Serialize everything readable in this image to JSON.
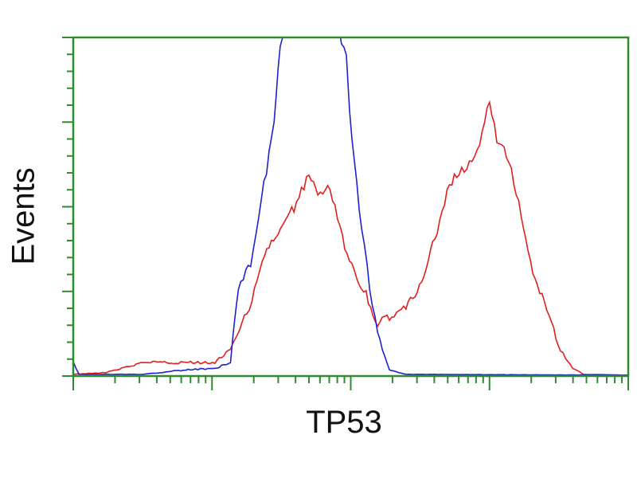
{
  "chart_data": {
    "type": "line",
    "title": "",
    "xlabel": "TP53",
    "ylabel": "Events",
    "xscale": "log",
    "xlim": [
      1,
      10000
    ],
    "ylim": [
      0,
      4
    ],
    "grid": false,
    "legend": "none",
    "axis_color": "#2e8b2e",
    "series": [
      {
        "color": "#e02020",
        "x": [
          1,
          1.7,
          3.2,
          6.2,
          10.5,
          13.6,
          17.8,
          23,
          30,
          39,
          50,
          58,
          71,
          87,
          106,
          129,
          156,
          190,
          250,
          324,
          420,
          515,
          630,
          815,
          1000,
          1130,
          1380,
          1690,
          2050,
          2690,
          3250,
          3980,
          4800,
          10000
        ],
        "y": [
          0.02,
          0.04,
          0.16,
          0.16,
          0.16,
          0.3,
          0.73,
          1.34,
          1.72,
          1.98,
          2.38,
          2.14,
          2.24,
          1.62,
          1.2,
          0.96,
          0.63,
          0.7,
          0.82,
          1.1,
          1.72,
          2.28,
          2.42,
          2.66,
          3.23,
          2.8,
          2.57,
          1.91,
          1.25,
          0.68,
          0.3,
          0.09,
          0.02,
          0.01
        ]
      },
      {
        "color": "#2020d0",
        "x": [
          1,
          1.1,
          3.2,
          6.2,
          10.5,
          13.6,
          15.5,
          19,
          21.7,
          24.7,
          28,
          31,
          53,
          93,
          98,
          106,
          120,
          137,
          156,
          190,
          250,
          10000
        ],
        "y": [
          0.16,
          0.02,
          0.02,
          0.07,
          0.09,
          0.16,
          1.06,
          1.34,
          1.91,
          2.42,
          3.04,
          3.89,
          5.0,
          3.79,
          3.13,
          2.57,
          1.72,
          1.06,
          0.49,
          0.07,
          0.02,
          0.01
        ]
      }
    ]
  }
}
